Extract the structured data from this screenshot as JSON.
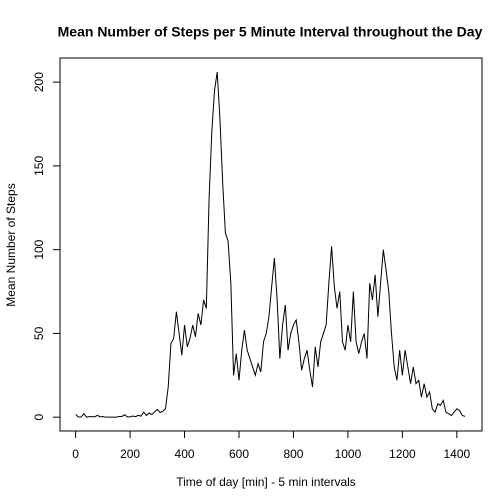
{
  "chart_data": {
    "type": "line",
    "title": "Mean Number of Steps per 5 Minute Interval throughout the Day",
    "x_label": "Time of day [min] - 5 min intervals",
    "y_label": "Mean Number of Steps",
    "color": "#000000",
    "x": [
      0,
      10,
      20,
      30,
      40,
      50,
      60,
      70,
      80,
      90,
      100,
      110,
      120,
      130,
      140,
      150,
      160,
      170,
      180,
      190,
      200,
      210,
      220,
      230,
      240,
      250,
      260,
      270,
      280,
      290,
      300,
      310,
      320,
      330,
      340,
      350,
      360,
      370,
      380,
      390,
      400,
      410,
      420,
      430,
      440,
      450,
      460,
      470,
      480,
      490,
      500,
      510,
      520,
      530,
      540,
      550,
      560,
      570,
      580,
      590,
      600,
      610,
      620,
      630,
      640,
      650,
      660,
      670,
      680,
      690,
      700,
      710,
      720,
      730,
      740,
      750,
      760,
      770,
      780,
      790,
      800,
      810,
      820,
      830,
      840,
      850,
      860,
      870,
      880,
      890,
      900,
      910,
      920,
      930,
      940,
      950,
      960,
      970,
      980,
      990,
      1000,
      1010,
      1020,
      1030,
      1040,
      1050,
      1060,
      1070,
      1080,
      1090,
      1100,
      1110,
      1120,
      1130,
      1140,
      1150,
      1160,
      1170,
      1180,
      1190,
      1200,
      1210,
      1220,
      1230,
      1240,
      1250,
      1260,
      1270,
      1280,
      1290,
      1300,
      1310,
      1320,
      1330,
      1340,
      1350,
      1360,
      1370,
      1380,
      1390,
      1400,
      1410,
      1420,
      1430
    ],
    "values": [
      1.7,
      0.1,
      0.1,
      2.1,
      0,
      0.3,
      0.3,
      0.2,
      1.1,
      0.2,
      0.4,
      0,
      0,
      0,
      0,
      0,
      0.5,
      0.4,
      1.5,
      0.2,
      0.2,
      0.7,
      0.3,
      1.1,
      0.6,
      3,
      1,
      2.5,
      1.6,
      3.2,
      4.6,
      2.8,
      3.5,
      5,
      18,
      44,
      47,
      63,
      50,
      37,
      55,
      42,
      47,
      55,
      48,
      62,
      55,
      70,
      65,
      130,
      170,
      195,
      206,
      178,
      140,
      110,
      105,
      80,
      25,
      38,
      22,
      40,
      52,
      40,
      35,
      30,
      25,
      32,
      27,
      45,
      50,
      60,
      78,
      95,
      70,
      35,
      55,
      67,
      40,
      50,
      55,
      58,
      45,
      28,
      35,
      40,
      28,
      18,
      42,
      30,
      45,
      50,
      55,
      80,
      102,
      78,
      65,
      75,
      45,
      40,
      55,
      45,
      75,
      45,
      38,
      45,
      50,
      35,
      80,
      70,
      85,
      60,
      80,
      100,
      88,
      75,
      50,
      30,
      22,
      40,
      25,
      40,
      30,
      20,
      30,
      20,
      22,
      12,
      20,
      12,
      15,
      5,
      3,
      8,
      7,
      10,
      3,
      2,
      1,
      3,
      5,
      4,
      1,
      0.5
    ],
    "xlim": [
      -57.4,
      1492.4
    ],
    "ylim": [
      -8.25,
      214.4
    ],
    "xticks": [
      0,
      200,
      400,
      600,
      800,
      1000,
      1200,
      1400
    ],
    "yticks": [
      0,
      50,
      100,
      150,
      200
    ]
  }
}
